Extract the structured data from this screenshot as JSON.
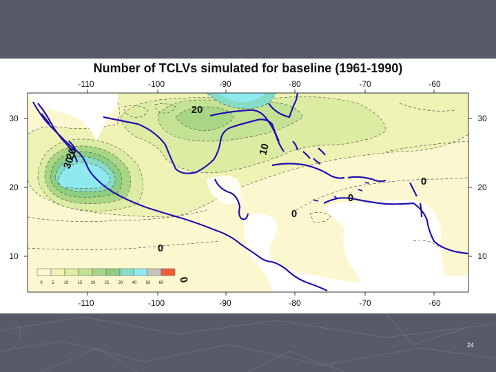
{
  "slide": {
    "title": "Number of TCLVs simulated for baseline (1961-1990)",
    "slide_number": "24"
  },
  "map": {
    "longitude_ticks": [
      "-110",
      "-100",
      "-90",
      "-80",
      "-70",
      "-60"
    ],
    "latitude_ticks": [
      "30",
      "20",
      "10"
    ],
    "contour_labels": [
      "20",
      "10",
      "20",
      "30",
      "0",
      "0",
      "0",
      "0",
      "0"
    ],
    "legend": {
      "labels": [
        "0",
        "5",
        "10",
        "15",
        "20",
        "25",
        "30",
        "40",
        "50",
        "60"
      ],
      "colors": [
        "#fbf8d2",
        "#eef2b4",
        "#dceca2",
        "#c4e293",
        "#a9d684",
        "#8ccd82",
        "#86dcc6",
        "#8feaf0",
        "#c5c5bc",
        "#f15d3a"
      ]
    },
    "colors": {
      "sea_low": "#fbf8d0",
      "land": "#ffffff",
      "coast": "#2010b0"
    }
  }
}
